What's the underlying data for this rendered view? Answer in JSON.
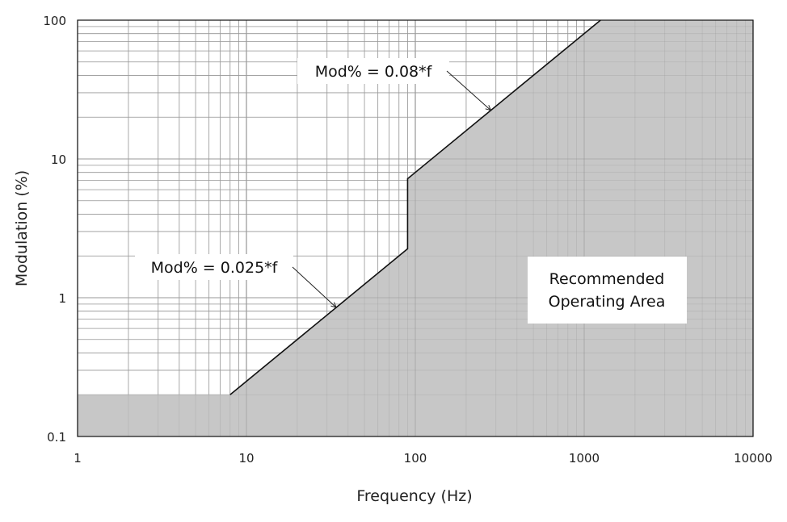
{
  "chart_data": {
    "type": "area",
    "title": "",
    "xlabel": "Frequency (Hz)",
    "ylabel": "Modulation (%)",
    "x_scale": "log",
    "y_scale": "log",
    "xlim": [
      1,
      10000
    ],
    "ylim": [
      0.1,
      100
    ],
    "x_ticks": [
      1,
      10,
      100,
      1000,
      10000
    ],
    "x_tick_labels": [
      "1",
      "10",
      "100",
      "1000",
      "10000"
    ],
    "y_ticks": [
      0.1,
      1,
      10,
      100
    ],
    "y_tick_labels": [
      "0.1",
      "1",
      "10",
      "100"
    ],
    "grid": true,
    "boundary": [
      {
        "x": 1,
        "y": 0.2
      },
      {
        "x": 8,
        "y": 0.2
      },
      {
        "x": 90,
        "y": 2.25
      },
      {
        "x": 90,
        "y": 7.2
      },
      {
        "x": 1250,
        "y": 100
      }
    ],
    "annotations": [
      {
        "text": "Mod% = 0.08*f",
        "points_to": {
          "x": 280,
          "y": 22.4
        }
      },
      {
        "text": "Mod% = 0.025*f",
        "points_to": {
          "x": 34,
          "y": 0.85
        }
      }
    ],
    "area_label": [
      "Recommended",
      "Operating Area"
    ],
    "colors": {
      "area_fill": "#c7c7c7",
      "grid": "#9a9a9a",
      "boundary": "#111111"
    }
  }
}
